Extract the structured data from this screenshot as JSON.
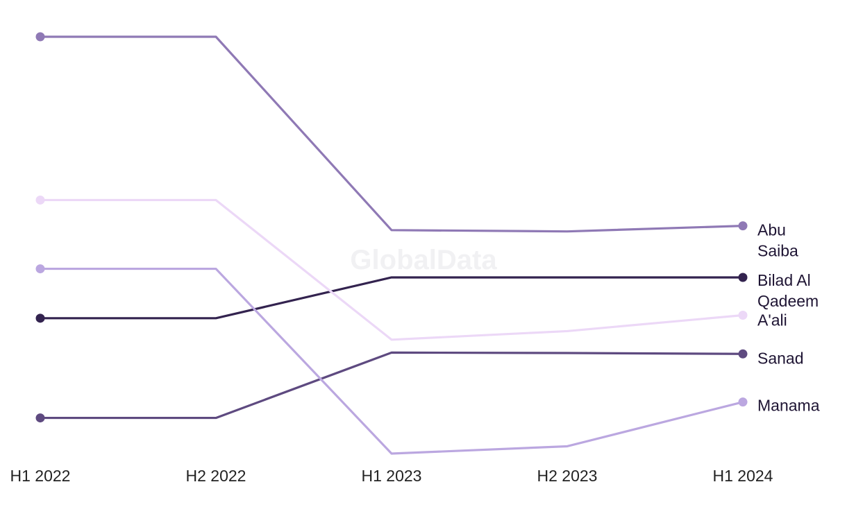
{
  "watermark": "GlobalData",
  "chart_data": {
    "type": "line",
    "chart_kind": "bump / slope ranking chart",
    "categories": [
      "H1 2022",
      "H2 2022",
      "H1 2023",
      "H2 2023",
      "H1 2024"
    ],
    "y_axis": "unlabeled, no ticks",
    "grid": false,
    "legend": "direct labels at right end of each line",
    "ylim": [
      0,
      100
    ],
    "series": [
      {
        "name": "Abu Saiba",
        "label_lines": [
          "Abu",
          "Saiba"
        ],
        "color": "#8f79b5",
        "values": [
          95,
          95,
          50,
          49.7,
          51
        ]
      },
      {
        "name": "Bilad Al Qadeem",
        "label_lines": [
          "Bilad Al",
          "Qadeem"
        ],
        "color": "#33234f",
        "values": [
          29.5,
          29.5,
          39,
          39,
          39
        ]
      },
      {
        "name": "A'ali",
        "label_lines": [
          "A'ali"
        ],
        "color": "#ecd8f7",
        "values": [
          57,
          57,
          24.5,
          26.5,
          30.2
        ]
      },
      {
        "name": "Sanad",
        "label_lines": [
          "Sanad"
        ],
        "color": "#5e4a80",
        "values": [
          6.3,
          6.3,
          21.5,
          21.4,
          21.2
        ]
      },
      {
        "name": "Manama",
        "label_lines": [
          "Manama"
        ],
        "color": "#bba7e0",
        "values": [
          41,
          41,
          -2,
          -0.3,
          10
        ]
      }
    ]
  }
}
